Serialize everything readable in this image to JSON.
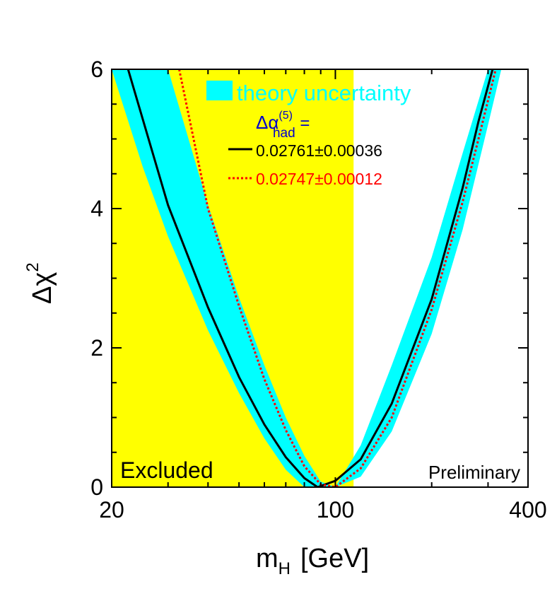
{
  "chart_data": {
    "type": "line",
    "title": "",
    "xlabel": {
      "main": "m",
      "sub": "H",
      "unit": "[GeV]"
    },
    "ylabel": {
      "main": "Δχ",
      "sup": "2"
    },
    "x_scale": "log",
    "xlim": [
      20,
      400
    ],
    "ylim": [
      0,
      6
    ],
    "x_ticks": [
      20,
      100,
      400
    ],
    "x_tick_labels": [
      "20",
      "100",
      "400"
    ],
    "y_ticks": [
      0,
      2,
      4,
      6
    ],
    "y_tick_labels": [
      "0",
      "2",
      "4",
      "6"
    ],
    "excluded_region": {
      "x": [
        20,
        114
      ],
      "label": "Excluded"
    },
    "annotation": "Preliminary",
    "legend": {
      "position": "top",
      "band_label": "theory uncertainty",
      "header": {
        "main": "Δα",
        "sup": "(5)",
        "sub": "had",
        "suffix": " ="
      },
      "series_labels": [
        "0.02761±0.00036",
        "0.02747±0.00012"
      ]
    },
    "series": [
      {
        "name": "0.02761±0.00036",
        "style": "solid",
        "color": "#000000",
        "x": [
          22.5,
          30,
          40,
          50,
          60,
          70,
          80,
          88,
          100,
          120,
          150,
          200,
          250,
          280,
          310
        ],
        "y": [
          6.0,
          4.05,
          2.58,
          1.58,
          0.9,
          0.43,
          0.13,
          0.0,
          0.09,
          0.4,
          1.2,
          2.7,
          4.3,
          5.25,
          6.0
        ]
      },
      {
        "name": "0.02747±0.00012",
        "style": "dotted",
        "color": "#ff0000",
        "x": [
          32.5,
          40,
          50,
          60,
          70,
          80,
          90,
          100,
          120,
          150,
          200,
          250,
          280,
          317
        ],
        "y": [
          6.0,
          4.0,
          2.6,
          1.55,
          0.82,
          0.3,
          0.04,
          0.0,
          0.27,
          1.0,
          2.55,
          4.1,
          5.0,
          6.0
        ]
      }
    ],
    "band": {
      "label": "theory uncertainty",
      "color": "#00ffff",
      "x": [
        20,
        25,
        30,
        40,
        50,
        60,
        70,
        80,
        90,
        100,
        120,
        150,
        200,
        250,
        300,
        330
      ],
      "y_low": [
        6.0,
        4.6,
        3.6,
        2.25,
        1.35,
        0.7,
        0.25,
        0.0,
        0.0,
        0.0,
        0.15,
        0.8,
        2.2,
        3.7,
        5.2,
        6.0
      ],
      "y_high": [
        6.0,
        6.0,
        6.0,
        4.05,
        2.72,
        1.75,
        1.0,
        0.45,
        0.08,
        0.0,
        0.6,
        1.75,
        3.3,
        4.8,
        6.0,
        6.0
      ]
    }
  },
  "colors": {
    "excluded": "#ffff00",
    "band": "#00ffff",
    "legend_header": "#0000cc",
    "series_1": "#000000",
    "series_2": "#ff0000"
  }
}
